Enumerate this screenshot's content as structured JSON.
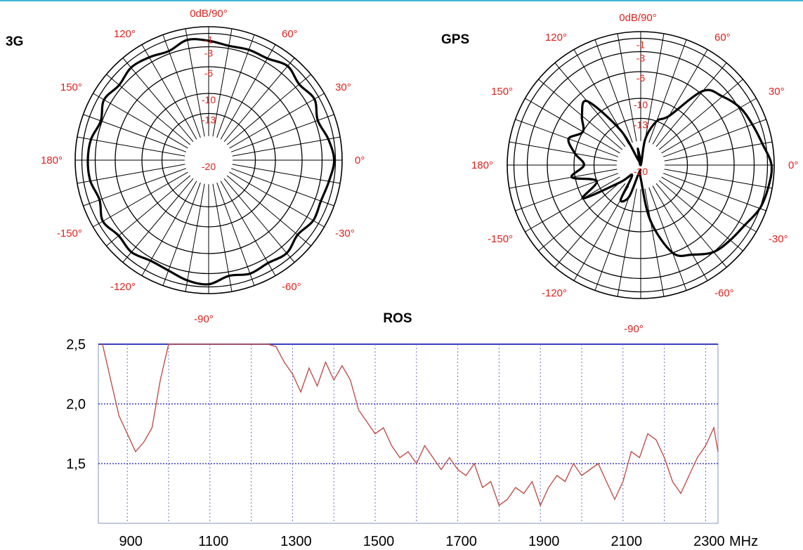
{
  "chart_data": [
    {
      "type": "polar",
      "title": "3G",
      "top_label": "0dB/90°",
      "bottom_label": "-90°",
      "angle_labels": [
        "0°",
        "30°",
        "60°",
        "120°",
        "150°",
        "180°",
        "-150°",
        "-120°",
        "-60°",
        "-30°"
      ],
      "angles_deg": [
        0,
        30,
        60,
        120,
        150,
        180,
        -150,
        -120,
        -60,
        -30
      ],
      "ring_labels": [
        "-1",
        "-3",
        "-6",
        "-10",
        "-13",
        "-20"
      ],
      "ring_values_db": [
        -1,
        -3,
        -6,
        -10,
        -13,
        -20
      ],
      "grid_step_deg": 10,
      "series": [
        {
          "angle_deg": [
            0,
            10,
            20,
            30,
            40,
            50,
            60,
            70,
            80,
            90,
            100,
            110,
            120,
            130,
            140,
            150,
            160,
            170,
            180,
            190,
            200,
            210,
            220,
            230,
            240,
            250,
            260,
            270,
            280,
            290,
            300,
            310,
            320,
            330,
            340,
            350
          ],
          "gain_db": [
            -1.2,
            -1.8,
            -2.6,
            -1.7,
            -2.3,
            -1.6,
            -2.4,
            -2.4,
            -2.6,
            -2.1,
            -1.7,
            -2.6,
            -2.2,
            -1.9,
            -2.5,
            -1.9,
            -2.8,
            -2.1,
            -1.9,
            -2.0,
            -2.6,
            -1.7,
            -2.4,
            -2.0,
            -2.6,
            -2.4,
            -1.7,
            -1.4,
            -2.4,
            -1.9,
            -2.2,
            -1.8,
            -2.6,
            -1.9,
            -2.1,
            -1.7
          ]
        }
      ]
    },
    {
      "type": "polar",
      "title": "GPS",
      "top_label": "0dB/90°",
      "bottom_label": "-90°",
      "angle_labels": [
        "0°",
        "30°",
        "60°",
        "120°",
        "150°",
        "180°",
        "-150°",
        "-120°",
        "-60°",
        "-30°"
      ],
      "angles_deg": [
        0,
        30,
        60,
        120,
        150,
        180,
        -150,
        -120,
        -60,
        -30
      ],
      "ring_labels": [
        "-1",
        "-3",
        "-6",
        "-10",
        "-13",
        "-20"
      ],
      "ring_values_db": [
        -1,
        -3,
        -6,
        -10,
        -13,
        -20
      ],
      "grid_step_deg": 10,
      "series": [
        {
          "angle_deg": [
            0,
            10,
            20,
            30,
            40,
            50,
            60,
            70,
            80,
            90,
            100,
            110,
            120,
            130,
            140,
            150,
            160,
            170,
            180,
            190,
            200,
            210,
            220,
            230,
            240,
            250,
            260,
            270,
            280,
            290,
            300,
            310,
            320,
            330,
            340,
            350
          ],
          "gain_db": [
            -0.4,
            -1.5,
            -2.2,
            -2.8,
            -4.0,
            -5.5,
            -11.5,
            -13.0,
            -16.0,
            -20,
            -17.5,
            -19.5,
            -14.0,
            -7.5,
            -8.5,
            -10.0,
            -8.5,
            -10.0,
            -11.5,
            -9.5,
            -13.0,
            -10.0,
            -16.0,
            -18.0,
            -14.0,
            -15.0,
            -19.0,
            -18.0,
            -11.5,
            -6.0,
            -4.5,
            -3.0,
            -2.5,
            -2.0,
            -1.0,
            -0.6
          ]
        }
      ]
    },
    {
      "type": "line",
      "title": "ROS",
      "x_ticks": [
        "900",
        "1100",
        "1300",
        "1500",
        "1700",
        "1900",
        "2100",
        "2300"
      ],
      "x_unit": "MHz",
      "y_ticks": [
        "2,5",
        "2,0",
        "1,5"
      ],
      "ylim": [
        1.0,
        2.5
      ],
      "xlim": [
        830,
        2330
      ],
      "x": [
        840,
        860,
        880,
        900,
        920,
        940,
        960,
        980,
        1000,
        1020,
        1040,
        1060,
        1080,
        1100,
        1120,
        1140,
        1160,
        1180,
        1200,
        1220,
        1240,
        1260,
        1280,
        1300,
        1320,
        1340,
        1360,
        1380,
        1400,
        1420,
        1440,
        1460,
        1480,
        1500,
        1520,
        1540,
        1560,
        1580,
        1600,
        1620,
        1640,
        1660,
        1680,
        1700,
        1720,
        1740,
        1760,
        1780,
        1800,
        1820,
        1840,
        1860,
        1880,
        1900,
        1920,
        1940,
        1960,
        1980,
        2000,
        2020,
        2040,
        2060,
        2080,
        2100,
        2120,
        2140,
        2160,
        2180,
        2200,
        2220,
        2240,
        2260,
        2280,
        2300,
        2320,
        2330
      ],
      "values": [
        2.5,
        2.2,
        1.9,
        1.75,
        1.6,
        1.68,
        1.8,
        2.2,
        2.5,
        2.5,
        2.5,
        2.5,
        2.5,
        2.5,
        2.5,
        2.5,
        2.5,
        2.5,
        2.5,
        2.5,
        2.5,
        2.48,
        2.35,
        2.25,
        2.1,
        2.3,
        2.15,
        2.35,
        2.2,
        2.32,
        2.2,
        1.95,
        1.85,
        1.75,
        1.8,
        1.65,
        1.55,
        1.6,
        1.5,
        1.65,
        1.55,
        1.45,
        1.55,
        1.45,
        1.4,
        1.5,
        1.3,
        1.35,
        1.15,
        1.2,
        1.3,
        1.25,
        1.35,
        1.15,
        1.3,
        1.4,
        1.35,
        1.5,
        1.4,
        1.45,
        1.5,
        1.35,
        1.2,
        1.35,
        1.6,
        1.55,
        1.75,
        1.7,
        1.55,
        1.35,
        1.25,
        1.4,
        1.55,
        1.65,
        1.8,
        1.6
      ],
      "color": "#c0504d"
    }
  ]
}
